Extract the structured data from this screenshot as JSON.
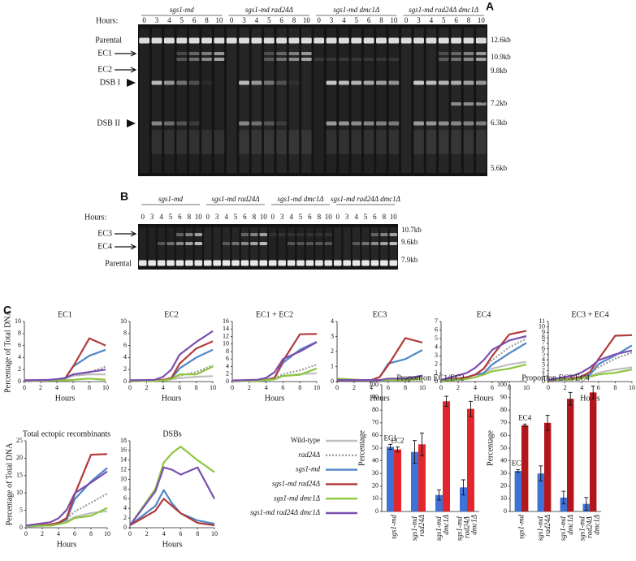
{
  "gel_a": {
    "panel": "A",
    "hours_label": "Hours:",
    "strains": [
      "sgs1-md",
      "sgs1-md rad24Δ",
      "sgs1-md dmc1Δ",
      "sgs1-md rad24Δ dmc1Δ"
    ],
    "hours": [
      0,
      3,
      4,
      5,
      6,
      8,
      10
    ],
    "left_labels": [
      "Parental",
      "EC1",
      "EC2",
      "DSB I",
      "DSB II"
    ],
    "right_labels": [
      "12.6kb",
      "10.9kb",
      "9.8kb",
      "7.2kb",
      "6.3kb",
      "5.6kb"
    ],
    "asterisk": "*"
  },
  "gel_b": {
    "panel": "B",
    "hours_label": "Hours:",
    "strains": [
      "sgs1-md",
      "sgs1-md rad24Δ",
      "sgs1-md dmc1Δ",
      "sgs1-md rad24Δ dmc1Δ"
    ],
    "hours": [
      0,
      3,
      4,
      5,
      6,
      8,
      10
    ],
    "left_labels": [
      "EC3",
      "EC4",
      "Parental"
    ],
    "right_labels": [
      "10.7kb",
      "9.6kb",
      "7.9kb"
    ]
  },
  "panel_c": "C",
  "legend": [
    {
      "name": "Wild-type",
      "color": "#bfbfbf",
      "dash": false
    },
    {
      "name": "rad24Δ",
      "color": "#9a9a9a",
      "dash": true
    },
    {
      "name": "sgs1-md",
      "color": "#4f86c6",
      "dash": false
    },
    {
      "name": "sgs1-md rad24Δ",
      "color": "#b23a3a",
      "dash": false
    },
    {
      "name": "sgs1-md dmc1Δ",
      "color": "#8cc63f",
      "dash": false
    },
    {
      "name": "sgs1-md rad24Δ dmc1Δ",
      "color": "#7b4fb0",
      "dash": false
    }
  ],
  "chart_data": [
    {
      "type": "line",
      "title": "EC1",
      "xlabel": "Hours",
      "ylabel": "Percentage of Total DNA",
      "x": [
        0,
        3,
        4,
        5,
        6,
        8,
        10
      ],
      "xlim": [
        0,
        10
      ],
      "xticks": [
        0,
        2,
        4,
        6,
        8,
        10
      ],
      "ylim": [
        0,
        10
      ],
      "yticks": [
        0,
        2,
        4,
        6,
        8,
        10
      ],
      "series": [
        {
          "values": [
            0,
            0.2,
            0.3,
            0.5,
            1,
            1.2,
            1.2
          ]
        },
        {
          "values": [
            0,
            0.2,
            0.3,
            0.5,
            1,
            1.5,
            2.5
          ]
        },
        {
          "values": [
            0.2,
            0.2,
            0.3,
            0.5,
            2.5,
            4.3,
            5.3
          ]
        },
        {
          "values": [
            0.2,
            0.2,
            0.3,
            0.5,
            2.5,
            7.2,
            6
          ]
        },
        {
          "values": [
            0.2,
            0.2,
            0.2,
            0.2,
            0.3,
            0.5,
            0.3
          ]
        },
        {
          "values": [
            0.2,
            0.3,
            0.4,
            0.6,
            1.2,
            1.6,
            2
          ]
        }
      ]
    },
    {
      "type": "line",
      "title": "EC2",
      "xlabel": "Hours",
      "x": [
        0,
        3,
        4,
        5,
        6,
        8,
        10
      ],
      "xlim": [
        0,
        10
      ],
      "xticks": [
        0,
        2,
        4,
        6,
        8,
        10
      ],
      "ylim": [
        0,
        10
      ],
      "yticks": [
        0,
        2,
        4,
        6,
        8,
        10
      ],
      "series": [
        {
          "values": [
            0,
            0.2,
            0.3,
            0.4,
            0.6,
            0.8,
            0.9
          ]
        },
        {
          "values": [
            0,
            0.2,
            0.3,
            0.5,
            1,
            1.6,
            2.7
          ]
        },
        {
          "values": [
            0.2,
            0.2,
            0.3,
            0.5,
            2.2,
            4,
            5.3
          ]
        },
        {
          "values": [
            0.2,
            0.2,
            0.3,
            0.6,
            3,
            5.5,
            6.7
          ]
        },
        {
          "values": [
            0.1,
            0.1,
            0.2,
            0.4,
            1.2,
            1.2,
            2.5
          ]
        },
        {
          "values": [
            0.2,
            0.3,
            0.8,
            2,
            4.5,
            6.6,
            8.4
          ]
        }
      ]
    },
    {
      "type": "line",
      "title": "EC1 + EC2",
      "xlabel": "Hours",
      "x": [
        0,
        3,
        4,
        5,
        6,
        8,
        10
      ],
      "xlim": [
        0,
        10
      ],
      "xticks": [
        0,
        2,
        4,
        6,
        8,
        10
      ],
      "ylim": [
        0,
        16
      ],
      "yticks": [
        0,
        2,
        4,
        6,
        8,
        10,
        12,
        14,
        16
      ],
      "series": [
        {
          "values": [
            0,
            0.3,
            0.5,
            0.8,
            1.5,
            2,
            2.2
          ]
        },
        {
          "values": [
            0,
            0.3,
            0.5,
            1,
            2,
            3,
            4.5
          ]
        },
        {
          "values": [
            0.3,
            0.3,
            0.5,
            1,
            5,
            8.5,
            10.6
          ]
        },
        {
          "values": [
            0.3,
            0.3,
            0.5,
            1,
            5.5,
            12.6,
            12.7
          ]
        },
        {
          "values": [
            0.2,
            0.2,
            0.4,
            0.6,
            1.5,
            1.8,
            3.5
          ]
        },
        {
          "values": [
            0.3,
            0.5,
            1,
            2.5,
            6,
            8,
            10.5
          ]
        }
      ]
    },
    {
      "type": "line",
      "title": "EC3",
      "xlabel": "Hours",
      "x": [
        0,
        3,
        4,
        5,
        6,
        8,
        10
      ],
      "xlim": [
        0,
        10
      ],
      "xticks": [
        0,
        2,
        4,
        6,
        8,
        10
      ],
      "ylim": [
        0,
        4
      ],
      "yticks": [
        0,
        1,
        2,
        3,
        4
      ],
      "series": [
        {
          "values": [
            0.1,
            0.1,
            0.1,
            0.1,
            0.1,
            0.2,
            0.3
          ]
        },
        {
          "values": [
            0.1,
            0.1,
            0.1,
            0.1,
            0.1,
            0.2,
            0.3
          ]
        },
        {
          "values": [
            0.1,
            0.1,
            0.1,
            0.3,
            1.2,
            1.5,
            2.1
          ]
        },
        {
          "values": [
            0.1,
            0.1,
            0.1,
            0.3,
            1.1,
            2.9,
            2.6
          ]
        },
        {
          "values": [
            0.2,
            0.1,
            0.1,
            0.1,
            0.1,
            0.1,
            0.2
          ]
        },
        {
          "values": [
            0.1,
            0.1,
            0.1,
            0.1,
            0.2,
            0.2,
            0.4
          ]
        }
      ]
    },
    {
      "type": "line",
      "title": "EC4",
      "xlabel": "Hours",
      "x": [
        0,
        3,
        4,
        5,
        6,
        8,
        10
      ],
      "xlim": [
        0,
        10
      ],
      "xticks": [
        0,
        2,
        4,
        6,
        8,
        10
      ],
      "ylim": [
        0,
        7
      ],
      "yticks": [
        0,
        1,
        2,
        3,
        4,
        5,
        6,
        7
      ],
      "series": [
        {
          "values": [
            0.1,
            0.3,
            0.5,
            1,
            1.5,
            2,
            2.3
          ]
        },
        {
          "values": [
            0.1,
            0.5,
            0.8,
            1.5,
            2.5,
            4,
            5
          ]
        },
        {
          "values": [
            0.1,
            0.5,
            0.8,
            1,
            2,
            3.3,
            4.5
          ]
        },
        {
          "values": [
            0.1,
            0.5,
            0.8,
            1.5,
            3,
            5.5,
            5.9
          ]
        },
        {
          "values": [
            0.1,
            0.3,
            0.5,
            0.8,
            1.2,
            1.5,
            2
          ]
        },
        {
          "values": [
            0.2,
            1,
            1.6,
            2.5,
            3.7,
            4.8,
            5.3
          ]
        }
      ]
    },
    {
      "type": "line",
      "title": "EC3 + EC4",
      "xlabel": "Hours",
      "x": [
        0,
        3,
        4,
        5,
        6,
        8,
        10
      ],
      "xlim": [
        0,
        10
      ],
      "xticks": [
        0,
        2,
        4,
        6,
        8,
        10
      ],
      "ylim": [
        0,
        11
      ],
      "yticks": [
        0,
        1,
        2,
        3,
        4,
        5,
        6,
        7,
        8,
        9,
        10,
        11
      ],
      "series": [
        {
          "values": [
            0.2,
            0.4,
            0.6,
            1,
            1.6,
            2.2,
            2.6
          ]
        },
        {
          "values": [
            0.2,
            0.6,
            0.9,
            1.6,
            2.6,
            4.2,
            5.3
          ]
        },
        {
          "values": [
            0.2,
            0.6,
            0.9,
            1.3,
            3.2,
            4.8,
            6.6
          ]
        },
        {
          "values": [
            0.2,
            0.6,
            0.9,
            1.8,
            4.1,
            8.4,
            8.5
          ]
        },
        {
          "values": [
            0.3,
            0.4,
            0.6,
            0.9,
            1.3,
            1.6,
            2.2
          ]
        },
        {
          "values": [
            0.3,
            1.1,
            1.7,
            2.6,
            3.9,
            5,
            5.7
          ]
        }
      ]
    },
    {
      "type": "line",
      "title": "Total ectopic recombinants",
      "xlabel": "Hours",
      "ylabel": "Percentage of Total DNA",
      "x": [
        0,
        3,
        4,
        5,
        6,
        8,
        10
      ],
      "xlim": [
        0,
        10
      ],
      "xticks": [
        0,
        2,
        4,
        6,
        8,
        10
      ],
      "ylim": [
        0,
        25
      ],
      "yticks": [
        0,
        5,
        10,
        15,
        20,
        25
      ],
      "series": [
        {
          "values": [
            0.3,
            0.7,
            1.1,
            1.8,
            3.1,
            4.2,
            4.8
          ]
        },
        {
          "values": [
            0.3,
            0.9,
            1.4,
            2.6,
            4.6,
            7.2,
            9.8
          ]
        },
        {
          "values": [
            0.5,
            0.9,
            1.4,
            2.3,
            8.2,
            13.3,
            17.2
          ]
        },
        {
          "values": [
            0.5,
            0.9,
            1.4,
            2.8,
            9.6,
            21,
            21.2
          ]
        },
        {
          "values": [
            0.5,
            0.6,
            1,
            1.5,
            2.8,
            3.4,
            5.7
          ]
        },
        {
          "values": [
            0.6,
            1.6,
            2.7,
            5.1,
            9.9,
            13,
            16.2
          ]
        }
      ]
    },
    {
      "type": "line",
      "title": "DSBs",
      "xlabel": "Hours",
      "x": [
        0,
        3,
        4,
        5,
        6,
        8,
        10
      ],
      "xlim": [
        0,
        10
      ],
      "xticks": [
        0,
        2,
        4,
        6,
        8,
        10
      ],
      "ylim": [
        0,
        18
      ],
      "yticks": [
        0,
        2,
        4,
        6,
        8,
        10,
        12,
        14,
        16,
        18
      ],
      "series": [
        {
          "values": [
            null,
            null,
            null,
            null,
            null,
            null,
            null
          ]
        },
        {
          "values": [
            null,
            null,
            null,
            null,
            null,
            null,
            null
          ]
        },
        {
          "values": [
            0.5,
            4.5,
            7.8,
            5,
            3,
            1.5,
            0.8
          ]
        },
        {
          "values": [
            0.5,
            3.5,
            6,
            4.5,
            3,
            1,
            0.5
          ]
        },
        {
          "values": [
            0.5,
            8,
            13.5,
            15.5,
            16.8,
            14,
            11.5
          ]
        },
        {
          "values": [
            0.5,
            7.5,
            12.5,
            12,
            11,
            12.5,
            6
          ]
        }
      ]
    },
    {
      "type": "bar",
      "title": "Proportion EC1/EC2",
      "ylabel": "Percentage",
      "categories": [
        "sgs1-md",
        "sgs1-md rad24Δ",
        "sgs1-md dmc1Δ",
        "sgs1-md rad24Δ dmc1Δ"
      ],
      "ylim": [
        0,
        100
      ],
      "yticks": [
        0,
        10,
        20,
        30,
        40,
        50,
        60,
        70,
        80,
        90,
        100
      ],
      "series": [
        {
          "name": "EC1",
          "color": "#3f72d6",
          "values": [
            51,
            47,
            13,
            19
          ],
          "errors": [
            2,
            9,
            4,
            6
          ]
        },
        {
          "name": "EC2",
          "color": "#e3262c",
          "values": [
            49,
            53,
            87,
            81
          ],
          "errors": [
            2,
            9,
            4,
            6
          ]
        }
      ]
    },
    {
      "type": "bar",
      "title": "Proportion EC3/EC4",
      "ylabel": "Percentage",
      "categories": [
        "sgs1-md",
        "sgs1-md rad24Δ",
        "sgs1-md dmc1Δ",
        "sgs1-md rad24Δ dmc1Δ"
      ],
      "ylim": [
        0,
        100
      ],
      "yticks": [
        0,
        10,
        20,
        30,
        40,
        50,
        60,
        70,
        80,
        90,
        100
      ],
      "series": [
        {
          "name": "EC3",
          "color": "#3f72d6",
          "values": [
            32,
            30,
            11,
            6
          ],
          "errors": [
            1,
            6,
            5,
            5
          ]
        },
        {
          "name": "EC4",
          "color": "#b3171c",
          "values": [
            68,
            70,
            89,
            94
          ],
          "errors": [
            1,
            6,
            5,
            5
          ]
        }
      ]
    }
  ]
}
